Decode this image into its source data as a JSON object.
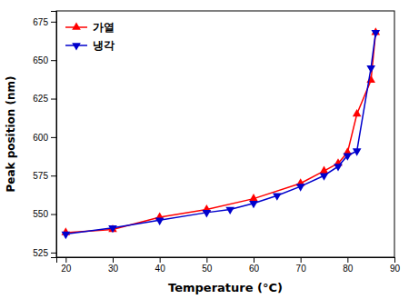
{
  "chart_data": {
    "type": "line",
    "xlabel": "Temperature (°C)",
    "ylabel": "Peak position (nm)",
    "series": [
      {
        "name": "가열",
        "color": "#FF0000",
        "marker": "triangle-up",
        "x": [
          20,
          30,
          40,
          50,
          60,
          70,
          75,
          78,
          80,
          82,
          85,
          86
        ],
        "values": [
          538,
          540,
          548,
          553,
          560,
          570,
          578,
          583,
          590,
          615,
          637,
          668
        ]
      },
      {
        "name": "냉각",
        "color": "#0000CC",
        "marker": "triangle-down",
        "x": [
          20,
          30,
          40,
          50,
          55,
          60,
          65,
          70,
          75,
          78,
          80,
          82,
          85,
          86
        ],
        "values": [
          537,
          541,
          546,
          551,
          553,
          557,
          562,
          568,
          575,
          581,
          588,
          591,
          645,
          668
        ]
      }
    ],
    "xlim": [
      18,
      90
    ],
    "ylim": [
      522,
      682
    ],
    "xticks": [
      20,
      30,
      40,
      50,
      60,
      70,
      80,
      90
    ],
    "yticks": [
      525,
      550,
      575,
      600,
      625,
      650,
      675
    ],
    "grid": false,
    "legend": "upper left"
  }
}
